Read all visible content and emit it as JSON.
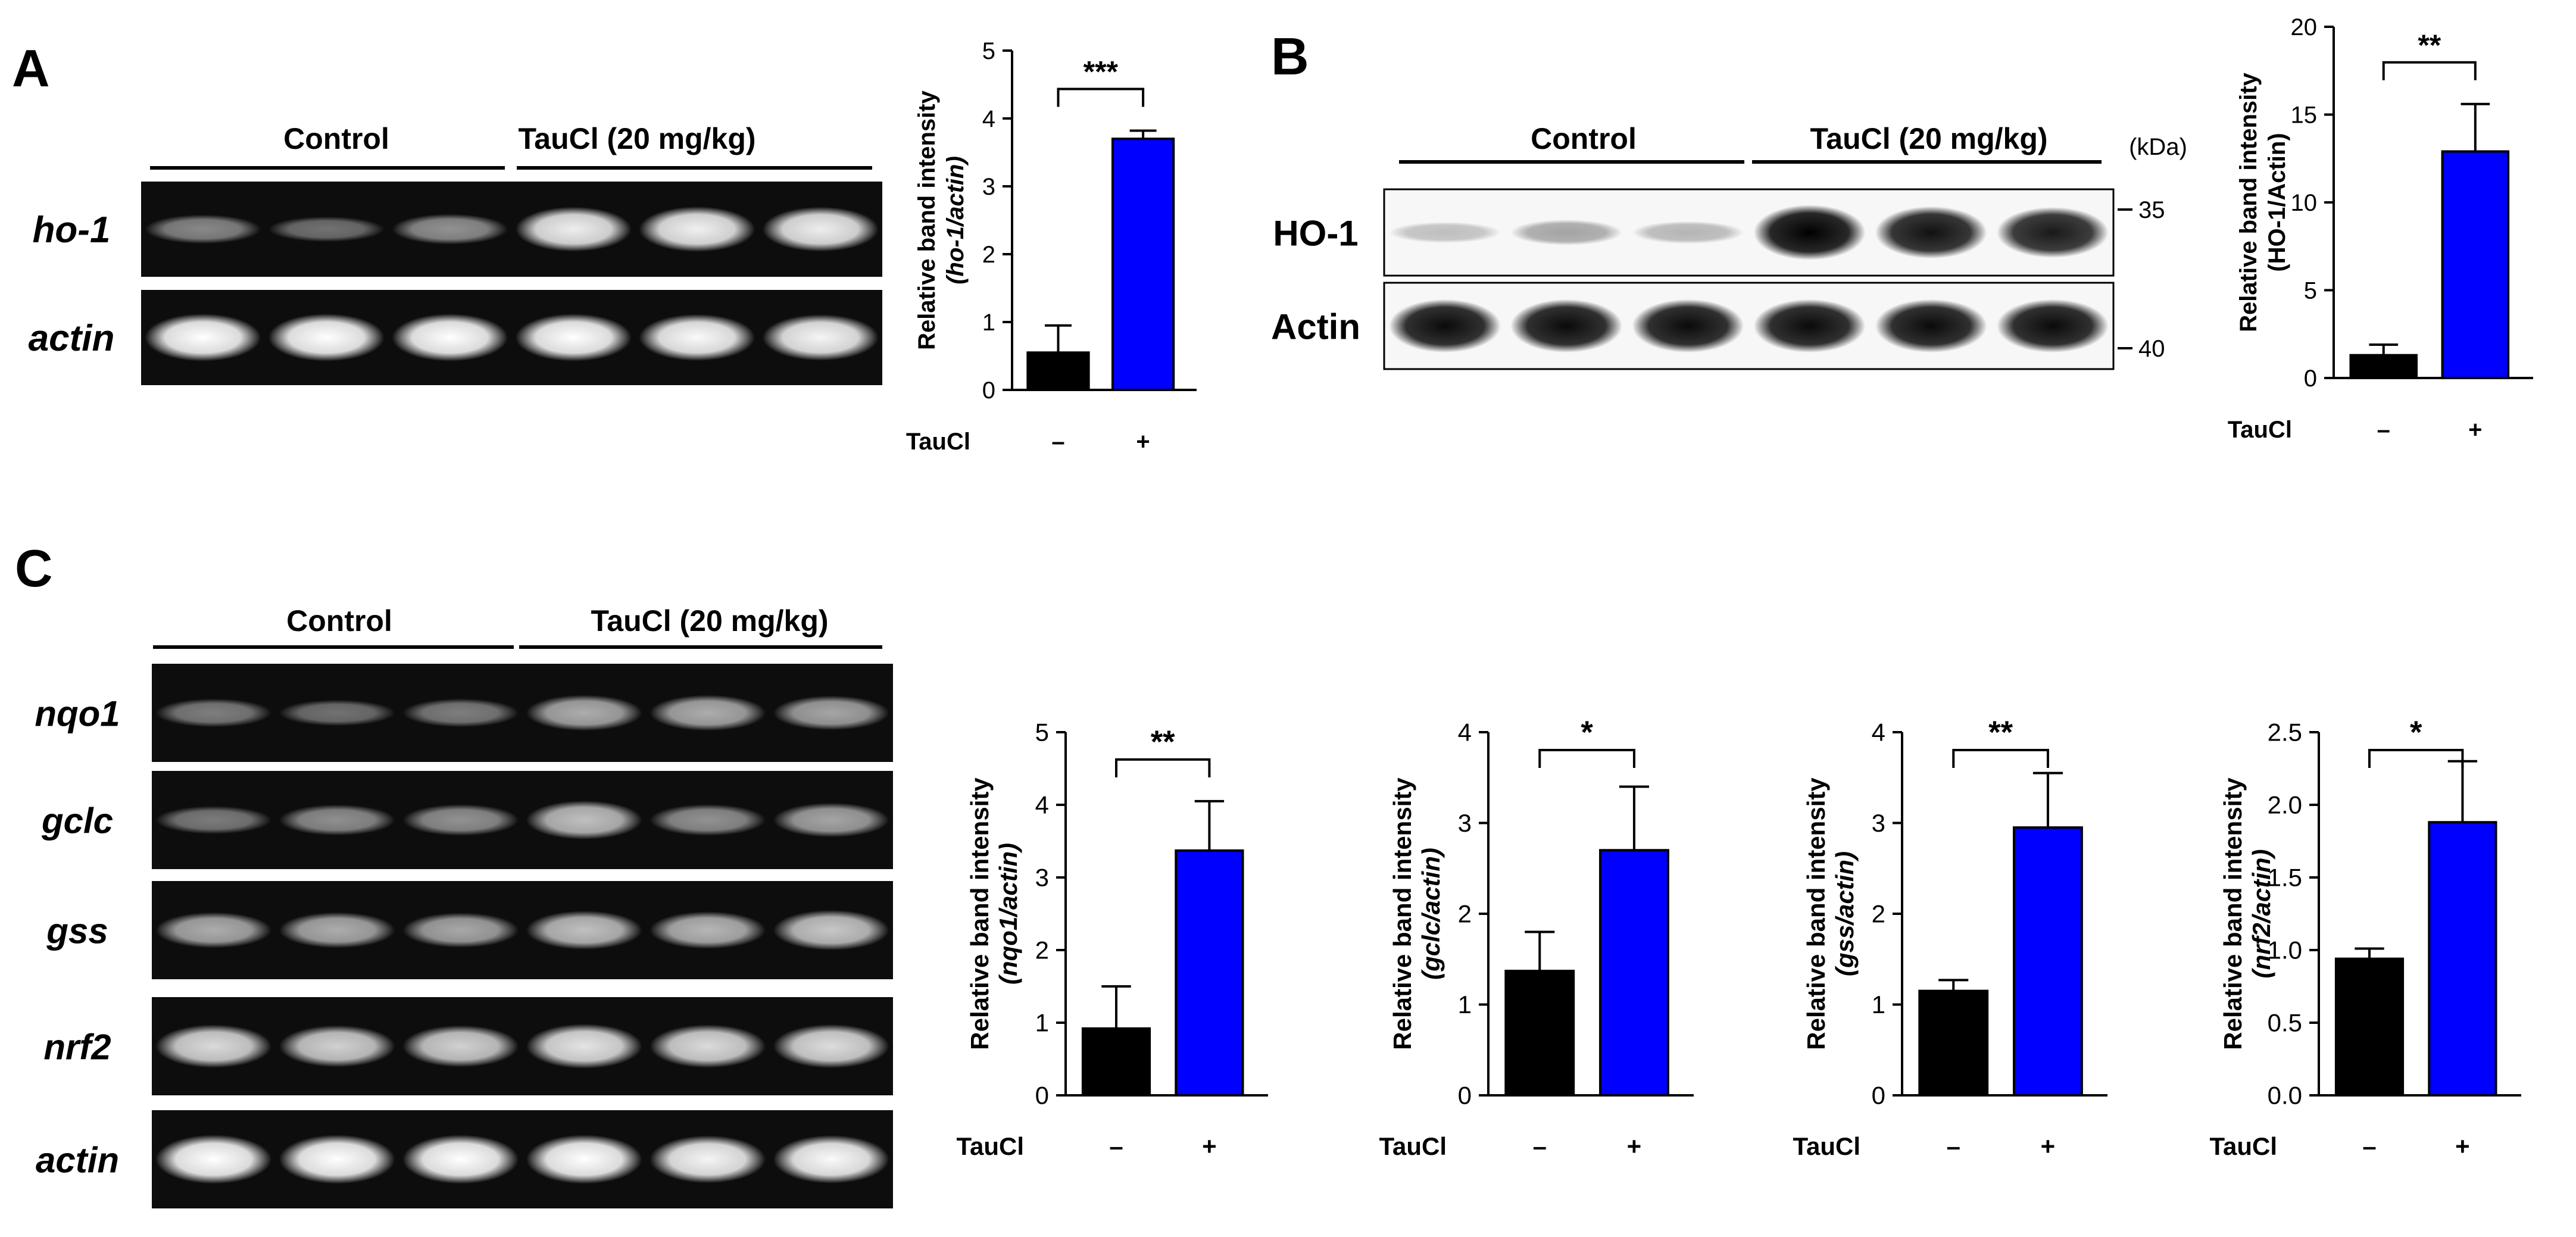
{
  "panels": {
    "A": {
      "letter": "A",
      "groups": [
        "Control",
        "TauCl (20 mg/kg)"
      ],
      "rows": [
        {
          "label": "ho-1",
          "italic": true,
          "lanes": [
            0.35,
            0.22,
            0.4,
            0.9,
            0.92,
            0.9
          ]
        },
        {
          "label": "actin",
          "italic": true,
          "lanes": [
            1.0,
            1.0,
            1.0,
            1.0,
            0.97,
            0.95
          ]
        }
      ]
    },
    "B": {
      "letter": "B",
      "groups": [
        "Control",
        "TauCl (20 mg/kg)"
      ],
      "kda_label": "(kDa)",
      "markers": [
        "35",
        "40"
      ],
      "rows": [
        {
          "label": "HO-1",
          "italic": false,
          "lanes": [
            0.1,
            0.22,
            0.14,
            1.0,
            0.92,
            0.88
          ]
        },
        {
          "label": "Actin",
          "italic": false,
          "lanes": [
            0.95,
            0.95,
            0.95,
            0.95,
            0.95,
            0.95
          ]
        }
      ]
    },
    "C": {
      "letter": "C",
      "groups": [
        "Control",
        "TauCl (20 mg/kg)"
      ],
      "rows": [
        {
          "label": "nqo1",
          "italic": true,
          "lanes": [
            0.3,
            0.22,
            0.3,
            0.55,
            0.55,
            0.5
          ]
        },
        {
          "label": "gclc",
          "italic": true,
          "lanes": [
            0.28,
            0.38,
            0.4,
            0.65,
            0.4,
            0.5
          ]
        },
        {
          "label": "gss",
          "italic": true,
          "lanes": [
            0.55,
            0.55,
            0.52,
            0.65,
            0.6,
            0.7
          ]
        },
        {
          "label": "nrf2",
          "italic": true,
          "lanes": [
            0.8,
            0.75,
            0.75,
            0.85,
            0.8,
            0.82
          ]
        },
        {
          "label": "actin",
          "italic": true,
          "lanes": [
            1.0,
            1.0,
            1.0,
            1.0,
            0.95,
            0.97
          ]
        }
      ]
    }
  },
  "treatment_axis": {
    "label": "TauCl",
    "ticks": [
      "–",
      "+"
    ]
  },
  "chart_data": [
    {
      "id": "A",
      "type": "bar",
      "categories": [
        "–",
        "+"
      ],
      "values": [
        0.55,
        3.7
      ],
      "errors": [
        0.4,
        0.12
      ],
      "colors": [
        "#000000",
        "#0000ff"
      ],
      "ylabel": "Relative band intensity",
      "ylabel_sub": "(ho-1/actin)",
      "ylabel_sub_italic": true,
      "xlabel": "TauCl",
      "ylim": [
        0,
        5
      ],
      "yticks": [
        "0",
        "1",
        "2",
        "3",
        "4",
        "5"
      ],
      "significance": "***"
    },
    {
      "id": "B",
      "type": "bar",
      "categories": [
        "–",
        "+"
      ],
      "values": [
        1.3,
        12.9
      ],
      "errors": [
        0.6,
        2.7
      ],
      "colors": [
        "#000000",
        "#0000ff"
      ],
      "ylabel": "Relative band intensity",
      "ylabel_sub": "(HO-1/Actin)",
      "ylabel_sub_italic": false,
      "xlabel": "TauCl",
      "ylim": [
        0,
        20
      ],
      "yticks": [
        "0",
        "5",
        "10",
        "15",
        "20"
      ],
      "significance": "**"
    },
    {
      "id": "C1",
      "type": "bar",
      "categories": [
        "–",
        "+"
      ],
      "values": [
        0.92,
        3.37
      ],
      "errors": [
        0.58,
        0.68
      ],
      "colors": [
        "#000000",
        "#0000ff"
      ],
      "ylabel": "Relative band intensity",
      "ylabel_sub": "(nqo1/actin)",
      "ylabel_sub_italic": true,
      "xlabel": "TauCl",
      "ylim": [
        0,
        5
      ],
      "yticks": [
        "0",
        "1",
        "2",
        "3",
        "4",
        "5"
      ],
      "significance": "**"
    },
    {
      "id": "C2",
      "type": "bar",
      "categories": [
        "–",
        "+"
      ],
      "values": [
        1.37,
        2.7
      ],
      "errors": [
        0.43,
        0.7
      ],
      "colors": [
        "#000000",
        "#0000ff"
      ],
      "ylabel": "Relative band intensity",
      "ylabel_sub": "(gclc/actin)",
      "ylabel_sub_italic": true,
      "xlabel": "TauCl",
      "ylim": [
        0,
        4
      ],
      "yticks": [
        "0",
        "1",
        "2",
        "3",
        "4"
      ],
      "significance": "*"
    },
    {
      "id": "C3",
      "type": "bar",
      "categories": [
        "–",
        "+"
      ],
      "values": [
        1.15,
        2.95
      ],
      "errors": [
        0.12,
        0.6
      ],
      "colors": [
        "#000000",
        "#0000ff"
      ],
      "ylabel": "Relative band intensity",
      "ylabel_sub": "(gss/actin)",
      "ylabel_sub_italic": true,
      "xlabel": "TauCl",
      "ylim": [
        0,
        4
      ],
      "yticks": [
        "0",
        "1",
        "2",
        "3",
        "4"
      ],
      "significance": "**"
    },
    {
      "id": "C4",
      "type": "bar",
      "categories": [
        "–",
        "+"
      ],
      "values": [
        0.94,
        1.88
      ],
      "errors": [
        0.07,
        0.42
      ],
      "colors": [
        "#000000",
        "#0000ff"
      ],
      "ylabel": "Relative band intensity",
      "ylabel_sub": "(nrf2/actin)",
      "ylabel_sub_italic": true,
      "xlabel": "TauCl",
      "ylim": [
        0,
        2.5
      ],
      "yticks": [
        "0.0",
        "0.5",
        "1.0",
        "1.5",
        "2.0",
        "2.5"
      ],
      "significance": "*"
    }
  ]
}
